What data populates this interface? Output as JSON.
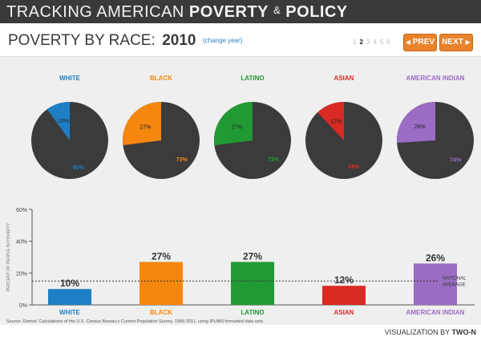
{
  "header": {
    "title_main": "TRACKING AMERICAN",
    "title_bold1": "POVERTY",
    "title_amp": "&",
    "title_bold2": "POLICY"
  },
  "subheader": {
    "label": "POVERTY BY RACE:",
    "year": "2010",
    "change_link": "(change year)"
  },
  "pager": {
    "pages": [
      "1",
      "2",
      "3",
      "4",
      "5",
      "6"
    ],
    "active_index": 1,
    "prev_label": "PREV",
    "next_label": "NEXT"
  },
  "colors": {
    "pie_dark": "#3b3b3b",
    "white": "#1f7fc4",
    "black": "#f5870f",
    "latino": "#229a34",
    "asian": "#d92b24",
    "american_indian": "#9a6cc3"
  },
  "chart_data": [
    {
      "type": "pie",
      "groups": [
        {
          "name": "WHITE",
          "slices": [
            {
              "label": "10%",
              "value": 10
            },
            {
              "label": "90%",
              "value": 90
            }
          ]
        },
        {
          "name": "BLACK",
          "slices": [
            {
              "label": "27%",
              "value": 27
            },
            {
              "label": "73%",
              "value": 73
            }
          ]
        },
        {
          "name": "LATINO",
          "slices": [
            {
              "label": "27%",
              "value": 27
            },
            {
              "label": "73%",
              "value": 73
            }
          ]
        },
        {
          "name": "ASIAN",
          "slices": [
            {
              "label": "12%",
              "value": 12
            },
            {
              "label": "88%",
              "value": 88
            }
          ]
        },
        {
          "name": "AMERICAN INDIAN",
          "slices": [
            {
              "label": "26%",
              "value": 26
            },
            {
              "label": "74%",
              "value": 74
            }
          ]
        }
      ]
    },
    {
      "type": "bar",
      "categories": [
        "WHITE",
        "BLACK",
        "LATINO",
        "ASIAN",
        "AMERICAN INDIAN"
      ],
      "values": [
        10,
        27,
        27,
        12,
        26
      ],
      "value_labels": [
        "10%",
        "27%",
        "27%",
        "12%",
        "26%"
      ],
      "ylabel": "PERCENT OF PEOPLE IN POVERTY",
      "yticks": [
        "0%",
        "20%",
        "40%",
        "60%"
      ],
      "ytick_values": [
        0,
        20,
        40,
        60
      ],
      "ylim": [
        0,
        60
      ],
      "reference_line": {
        "value": 15,
        "label_line1": "NATIONAL",
        "label_line2": "AVERAGE"
      }
    }
  ],
  "source_text": "Source: Demos' Calculations of the U.S. Census Bureau's Current Population Survey, 1968-2011, using IPUMS-formatted data sets.",
  "credit": {
    "prefix": "VISUALIZATION BY",
    "name": "TWO-N"
  }
}
